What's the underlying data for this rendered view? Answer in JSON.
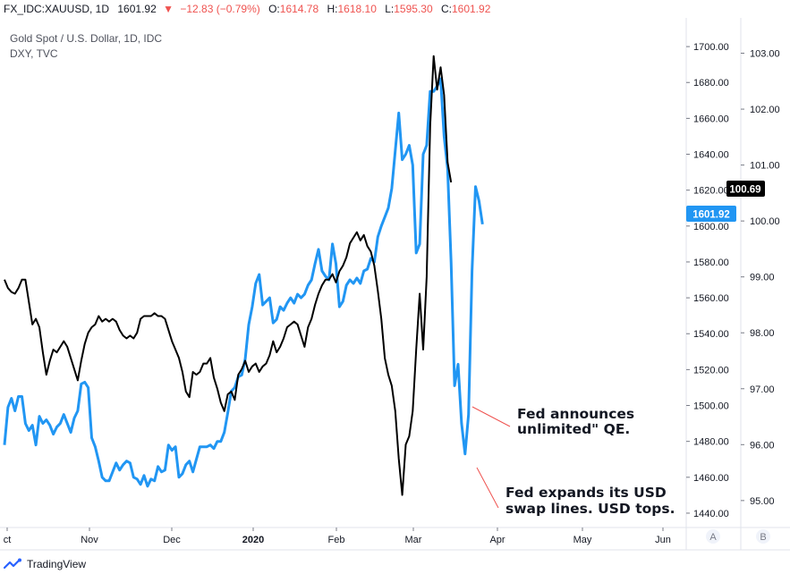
{
  "header": {
    "symbol": "FX_IDC:XAUUSD, 1D",
    "last": "1601.92",
    "direction_glyph": "▼",
    "change": "−12.83 (−0.79%)",
    "o_label": "O:",
    "o_value": "1614.78",
    "h_label": "H:",
    "h_value": "1618.10",
    "l_label": "L:",
    "l_value": "1595.30",
    "c_label": "C:",
    "c_value": "1601.92"
  },
  "legend": {
    "line1": "Gold Spot / U.S. Dollar, 1D, IDC",
    "line2": "DXY, TVC"
  },
  "annotations": [
    {
      "lines": [
        "Fed announces",
        "unlimited\" QE."
      ]
    },
    {
      "lines": [
        "Fed expands its USD",
        "swap lines. USD tops."
      ]
    }
  ],
  "scale_buttons": [
    "A",
    "B"
  ],
  "footer": {
    "brand": "TradingView"
  },
  "colors": {
    "gold": "#2196f3",
    "dxy": "#000000",
    "down": "#ef5350"
  },
  "chart_data": {
    "type": "line",
    "x_tick_labels": [
      "ct",
      "Nov",
      "Dec",
      "2020",
      "Feb",
      "Mar",
      "Apr",
      "May",
      "Jun"
    ],
    "y_axis_left": {
      "label_series": "Gold Spot / U.S. Dollar",
      "ticks": [
        "1440.00",
        "1460.00",
        "1480.00",
        "1500.00",
        "1520.00",
        "1540.00",
        "1560.00",
        "1580.00",
        "1600.00",
        "1620.00",
        "1640.00",
        "1660.00",
        "1680.00",
        "1700.00"
      ],
      "range": [
        1433,
        1715
      ]
    },
    "y_axis_right": {
      "label_series": "DXY",
      "ticks": [
        "95.00",
        "96.00",
        "97.00",
        "98.00",
        "99.00",
        "100.00",
        "101.00",
        "102.00",
        "103.00"
      ],
      "range": [
        94.55,
        103.6
      ]
    },
    "last_labels": {
      "dxy": "100.69",
      "gold": "1601.92"
    },
    "grid": false,
    "series": [
      {
        "name": "Gold Spot / U.S. Dollar, 1D, IDC",
        "axis": "left",
        "values": [
          1478,
          1499,
          1504,
          1497,
          1505,
          1505,
          1490,
          1486,
          1489,
          1478,
          1494,
          1490,
          1492,
          1489,
          1484,
          1488,
          1490,
          1495,
          1490,
          1485,
          1493,
          1497,
          1512,
          1513,
          1510,
          1482,
          1477,
          1469,
          1460,
          1458,
          1458,
          1463,
          1468,
          1464,
          1467,
          1469,
          1468,
          1460,
          1459,
          1456,
          1461,
          1455,
          1459,
          1458,
          1466,
          1463,
          1464,
          1478,
          1475,
          1477,
          1460,
          1462,
          1467,
          1469,
          1463,
          1470,
          1477,
          1477,
          1477,
          1478,
          1476,
          1480,
          1480,
          1485,
          1496,
          1508,
          1510,
          1516,
          1517,
          1526,
          1545,
          1555,
          1568,
          1573,
          1556,
          1558,
          1560,
          1546,
          1548,
          1555,
          1553,
          1557,
          1560,
          1557,
          1562,
          1560,
          1562,
          1567,
          1570,
          1579,
          1587,
          1575,
          1572,
          1570,
          1590,
          1579,
          1555,
          1558,
          1567,
          1570,
          1568,
          1571,
          1568,
          1575,
          1576,
          1582,
          1580,
          1594,
          1600,
          1605,
          1610,
          1621,
          1642,
          1663,
          1637,
          1640,
          1645,
          1634,
          1585,
          1590,
          1640,
          1645,
          1675,
          1675,
          1678,
          1682,
          1650,
          1632,
          1580,
          1511,
          1523,
          1490,
          1473,
          1495,
          1575,
          1622,
          1614,
          1601
        ]
      },
      {
        "name": "DXY, TVC",
        "axis": "right",
        "values": [
          98.95,
          98.8,
          98.73,
          98.7,
          98.8,
          98.95,
          98.95,
          98.55,
          98.15,
          98.25,
          98.1,
          97.65,
          97.25,
          97.5,
          97.7,
          97.65,
          97.75,
          97.85,
          97.75,
          97.55,
          97.35,
          97.15,
          97.5,
          97.8,
          98.0,
          98.1,
          98.15,
          98.3,
          98.2,
          98.25,
          98.2,
          98.25,
          98.2,
          98.05,
          97.95,
          97.9,
          97.95,
          97.9,
          98.0,
          98.25,
          98.3,
          98.3,
          98.3,
          98.35,
          98.3,
          98.3,
          98.25,
          98.05,
          97.85,
          97.7,
          97.55,
          97.3,
          96.95,
          96.85,
          97.3,
          97.25,
          97.3,
          97.45,
          97.45,
          97.55,
          97.2,
          97.0,
          96.75,
          96.6,
          96.9,
          96.95,
          96.8,
          97.25,
          97.35,
          97.5,
          97.3,
          97.4,
          97.45,
          97.3,
          97.4,
          97.45,
          97.6,
          97.85,
          97.65,
          97.75,
          97.9,
          98.1,
          98.15,
          98.2,
          98.15,
          97.95,
          97.75,
          98.1,
          98.25,
          98.5,
          98.7,
          98.85,
          98.95,
          98.95,
          99.05,
          98.9,
          99.1,
          99.2,
          99.35,
          99.6,
          99.7,
          99.8,
          99.65,
          99.75,
          99.55,
          99.45,
          99.2,
          98.75,
          98.25,
          97.55,
          97.25,
          97.05,
          96.6,
          95.75,
          95.1,
          96.0,
          96.15,
          96.6,
          97.7,
          98.7,
          97.7,
          99.0,
          101.7,
          102.95,
          102.35,
          102.75,
          102.25,
          101.05,
          100.69
        ]
      }
    ]
  }
}
